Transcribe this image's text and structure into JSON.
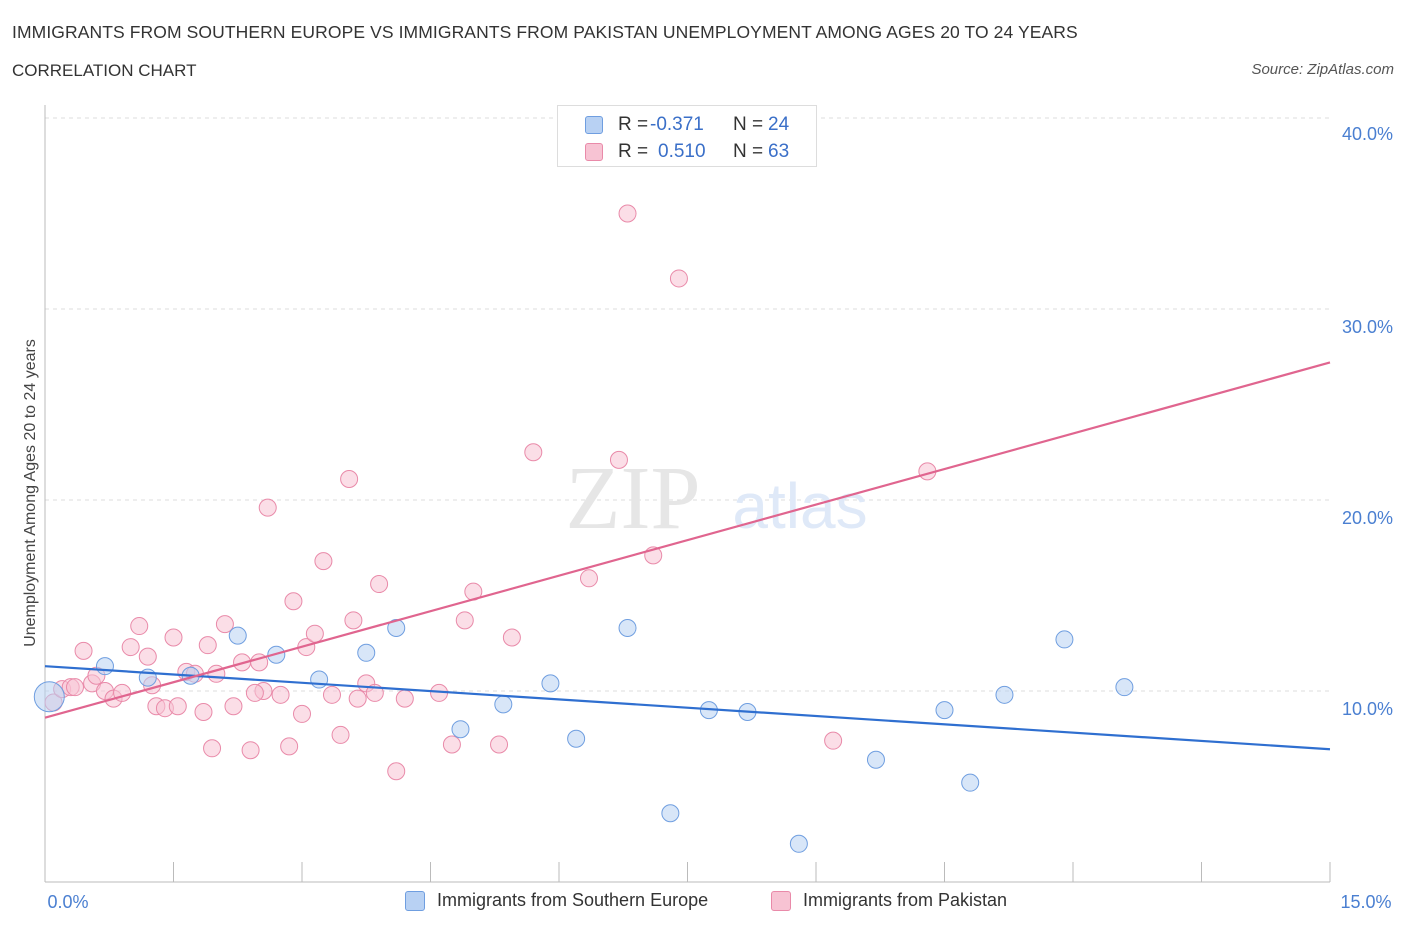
{
  "title": "IMMIGRANTS FROM SOUTHERN EUROPE VS IMMIGRANTS FROM PAKISTAN UNEMPLOYMENT AMONG AGES 20 TO 24 YEARS",
  "subtitle": "CORRELATION CHART",
  "source": "Source: ZipAtlas.com",
  "watermark": {
    "zip": "ZIP",
    "atlas": "atlas"
  },
  "legend_top": {
    "rows": [
      {
        "r_label": "R =",
        "r_value": "-0.371",
        "n_label": "N =",
        "n_value": "24"
      },
      {
        "r_label": "R =",
        "r_value": "0.510",
        "n_label": "N =",
        "n_value": "63"
      }
    ]
  },
  "legend_bottom": {
    "series_a": "Immigrants from Southern Europe",
    "series_b": "Immigrants from Pakistan"
  },
  "colors": {
    "blue_fill": "#b8d1f3",
    "blue_stroke": "#6f9ee0",
    "blue_line": "#2f6fd0",
    "pink_fill": "#f7c3d3",
    "pink_stroke": "#e98aa9",
    "pink_line": "#e0658f",
    "tick": "#4a7fd1",
    "grid": "#dddddd"
  },
  "chart_data": {
    "type": "scatter",
    "title": "IMMIGRANTS FROM SOUTHERN EUROPE VS IMMIGRANTS FROM PAKISTAN UNEMPLOYMENT AMONG AGES 20 TO 24 YEARS",
    "xlabel": "",
    "ylabel": "Unemployment Among Ages 20 to 24 years",
    "xlim": [
      0,
      15
    ],
    "ylim": [
      0,
      40
    ],
    "x_tick_labels": [
      "0.0%",
      "15.0%"
    ],
    "y_ticks": [
      10,
      20,
      30,
      40
    ],
    "y_tick_labels": [
      "10.0%",
      "20.0%",
      "30.0%",
      "40.0%"
    ],
    "grid": true,
    "legend_position": "bottom",
    "series": [
      {
        "name": "Immigrants from Southern Europe",
        "R": -0.371,
        "N": 24,
        "trend": {
          "x": [
            0,
            15
          ],
          "y": [
            11.3,
            6.95
          ]
        },
        "points": [
          {
            "x": 0.05,
            "y": 9.7,
            "s": "large"
          },
          {
            "x": 0.7,
            "y": 11.3
          },
          {
            "x": 1.2,
            "y": 10.7
          },
          {
            "x": 1.7,
            "y": 10.8
          },
          {
            "x": 2.25,
            "y": 12.9
          },
          {
            "x": 2.7,
            "y": 11.9
          },
          {
            "x": 3.2,
            "y": 10.6
          },
          {
            "x": 3.75,
            "y": 12.0
          },
          {
            "x": 4.1,
            "y": 13.3
          },
          {
            "x": 4.85,
            "y": 8.0
          },
          {
            "x": 5.35,
            "y": 9.3
          },
          {
            "x": 5.9,
            "y": 10.4
          },
          {
            "x": 6.2,
            "y": 7.5
          },
          {
            "x": 6.8,
            "y": 13.3
          },
          {
            "x": 7.3,
            "y": 3.6
          },
          {
            "x": 7.75,
            "y": 9.0
          },
          {
            "x": 8.2,
            "y": 8.9
          },
          {
            "x": 8.8,
            "y": 2.0
          },
          {
            "x": 9.7,
            "y": 6.4
          },
          {
            "x": 10.5,
            "y": 9.0
          },
          {
            "x": 10.8,
            "y": 5.2
          },
          {
            "x": 11.2,
            "y": 9.8
          },
          {
            "x": 11.9,
            "y": 12.7
          },
          {
            "x": 12.6,
            "y": 10.2
          }
        ]
      },
      {
        "name": "Immigrants from Pakistan",
        "R": 0.51,
        "N": 63,
        "trend": {
          "x": [
            0,
            15
          ],
          "y": [
            8.6,
            27.2
          ]
        },
        "points": [
          {
            "x": 0.1,
            "y": 9.4
          },
          {
            "x": 0.2,
            "y": 10.1
          },
          {
            "x": 0.3,
            "y": 10.2
          },
          {
            "x": 0.45,
            "y": 12.1
          },
          {
            "x": 0.55,
            "y": 10.4
          },
          {
            "x": 0.6,
            "y": 10.8
          },
          {
            "x": 0.7,
            "y": 10.0
          },
          {
            "x": 0.8,
            "y": 9.6
          },
          {
            "x": 0.9,
            "y": 9.9
          },
          {
            "x": 1.0,
            "y": 12.3
          },
          {
            "x": 1.1,
            "y": 13.4
          },
          {
            "x": 1.2,
            "y": 11.8
          },
          {
            "x": 1.3,
            "y": 9.2
          },
          {
            "x": 1.4,
            "y": 9.1
          },
          {
            "x": 1.5,
            "y": 12.8
          },
          {
            "x": 1.55,
            "y": 9.2
          },
          {
            "x": 1.65,
            "y": 11.0
          },
          {
            "x": 1.75,
            "y": 10.9
          },
          {
            "x": 1.85,
            "y": 8.9
          },
          {
            "x": 1.9,
            "y": 12.4
          },
          {
            "x": 1.95,
            "y": 7.0
          },
          {
            "x": 2.1,
            "y": 13.5
          },
          {
            "x": 2.2,
            "y": 9.2
          },
          {
            "x": 2.3,
            "y": 11.5
          },
          {
            "x": 2.4,
            "y": 6.9
          },
          {
            "x": 2.5,
            "y": 11.5
          },
          {
            "x": 2.55,
            "y": 10.0
          },
          {
            "x": 2.6,
            "y": 19.6
          },
          {
            "x": 2.75,
            "y": 9.8
          },
          {
            "x": 2.85,
            "y": 7.1
          },
          {
            "x": 2.9,
            "y": 14.7
          },
          {
            "x": 3.0,
            "y": 8.8
          },
          {
            "x": 3.05,
            "y": 12.3
          },
          {
            "x": 3.15,
            "y": 13.0
          },
          {
            "x": 3.25,
            "y": 16.8
          },
          {
            "x": 3.35,
            "y": 9.8
          },
          {
            "x": 3.45,
            "y": 7.7
          },
          {
            "x": 3.55,
            "y": 21.1
          },
          {
            "x": 3.65,
            "y": 9.6
          },
          {
            "x": 3.75,
            "y": 10.4
          },
          {
            "x": 3.85,
            "y": 9.9
          },
          {
            "x": 3.9,
            "y": 15.6
          },
          {
            "x": 4.1,
            "y": 5.8
          },
          {
            "x": 4.6,
            "y": 9.9
          },
          {
            "x": 4.75,
            "y": 7.2
          },
          {
            "x": 4.9,
            "y": 13.7
          },
          {
            "x": 5.0,
            "y": 15.2
          },
          {
            "x": 5.3,
            "y": 7.2
          },
          {
            "x": 5.45,
            "y": 12.8
          },
          {
            "x": 5.7,
            "y": 22.5
          },
          {
            "x": 6.35,
            "y": 15.9
          },
          {
            "x": 6.7,
            "y": 22.1
          },
          {
            "x": 6.8,
            "y": 35.0
          },
          {
            "x": 7.1,
            "y": 17.1
          },
          {
            "x": 7.4,
            "y": 31.6
          },
          {
            "x": 9.2,
            "y": 7.4
          },
          {
            "x": 10.3,
            "y": 21.5
          },
          {
            "x": 2.0,
            "y": 10.9
          },
          {
            "x": 3.6,
            "y": 13.7
          },
          {
            "x": 1.25,
            "y": 10.3
          },
          {
            "x": 0.35,
            "y": 10.2
          },
          {
            "x": 2.45,
            "y": 9.9
          },
          {
            "x": 4.2,
            "y": 9.6
          }
        ]
      }
    ]
  }
}
